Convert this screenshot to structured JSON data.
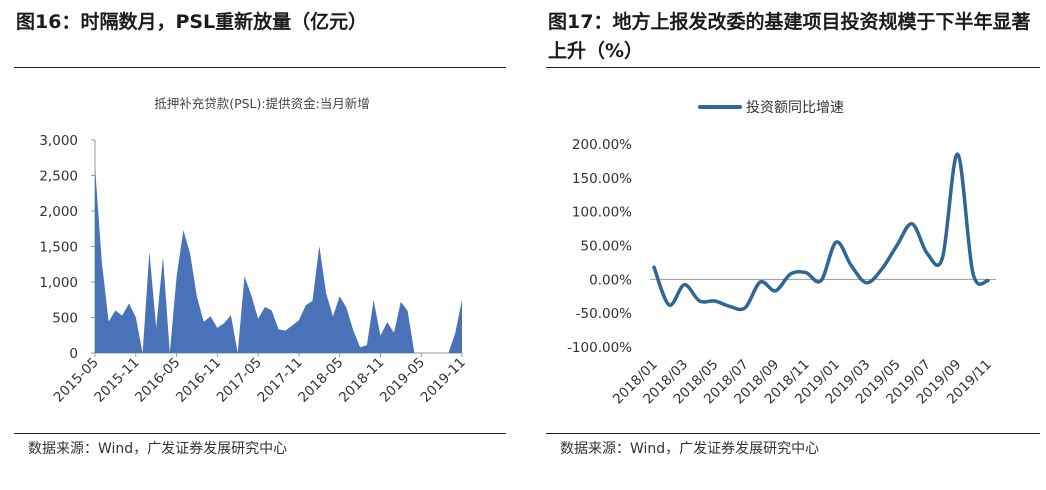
{
  "left": {
    "fig_title": "图16：时隔数月，PSL重新放量（亿元）",
    "source": "数据来源：Wind，广发证券发展研究中心",
    "chart_data": {
      "type": "area",
      "title": "抵押补充贷款(PSL):提供资金:当月新增",
      "color": "#4a72b8",
      "ylim": [
        0,
        3000
      ],
      "yticks": [
        0,
        500,
        1000,
        1500,
        2000,
        2500,
        3000
      ],
      "ytick_labels": [
        "0",
        "500",
        "1,000",
        "1,500",
        "2,000",
        "2,500",
        "3,000"
      ],
      "xtick_labels": [
        "2015-05",
        "2015-11",
        "2016-05",
        "2016-11",
        "2017-05",
        "2017-11",
        "2018-05",
        "2018-11",
        "2019-05",
        "2019-11"
      ],
      "x": [
        "2015-05",
        "2015-06",
        "2015-07",
        "2015-08",
        "2015-09",
        "2015-10",
        "2015-11",
        "2015-12",
        "2016-01",
        "2016-02",
        "2016-03",
        "2016-04",
        "2016-05",
        "2016-06",
        "2016-07",
        "2016-08",
        "2016-09",
        "2016-10",
        "2016-11",
        "2016-12",
        "2017-01",
        "2017-02",
        "2017-03",
        "2017-04",
        "2017-05",
        "2017-06",
        "2017-07",
        "2017-08",
        "2017-09",
        "2017-10",
        "2017-11",
        "2017-12",
        "2018-01",
        "2018-02",
        "2018-03",
        "2018-04",
        "2018-05",
        "2018-06",
        "2018-07",
        "2018-08",
        "2018-09",
        "2018-10",
        "2018-11",
        "2018-12",
        "2019-01",
        "2019-02",
        "2019-03",
        "2019-04",
        "2019-05",
        "2019-06",
        "2019-07",
        "2019-08",
        "2019-09",
        "2019-10",
        "2019-11"
      ],
      "values": [
        2626,
        1284,
        443,
        599,
        527,
        698,
        503,
        0,
        1426,
        355,
        1350,
        0,
        1077,
        1728,
        1401,
        791,
        439,
        516,
        353,
        420,
        534,
        0,
        1082,
        813,
        483,
        648,
        600,
        335,
        315,
        386,
        462,
        670,
        734,
        1509,
        844,
        515,
        799,
        635,
        317,
        81,
        108,
        745,
        242,
        436,
        284,
        722,
        593,
        0,
        0,
        0,
        0,
        0,
        0,
        276,
        751
      ]
    }
  },
  "right": {
    "fig_title": "图17：地方上报发改委的基建项目投资规模于下半年显著上升（%）",
    "source": "数据来源：Wind，广发证券发展研究中心",
    "chart_data": {
      "type": "line",
      "color": "#2f6694",
      "legend": "投资额同比增速",
      "legend_position": "top",
      "ylim": [
        -100,
        200
      ],
      "yticks": [
        -100,
        -50,
        0,
        50,
        100,
        150,
        200
      ],
      "ytick_labels": [
        "-100.00%",
        "-50.00%",
        "0.00%",
        "50.00%",
        "100.00%",
        "150.00%",
        "200.00%"
      ],
      "xtick_labels": [
        "2018/01",
        "2018/03",
        "2018/05",
        "2018/07",
        "2018/09",
        "2018/11",
        "2019/01",
        "2019/03",
        "2019/05",
        "2019/07",
        "2019/09",
        "2019/11"
      ],
      "x": [
        "2018/01",
        "2018/02",
        "2018/03",
        "2018/04",
        "2018/05",
        "2018/06",
        "2018/07",
        "2018/08",
        "2018/09",
        "2018/10",
        "2018/11",
        "2018/12",
        "2019/01",
        "2019/02",
        "2019/03",
        "2019/04",
        "2019/05",
        "2019/06",
        "2019/07",
        "2019/08",
        "2019/09",
        "2019/10",
        "2019/11"
      ],
      "values": [
        18,
        -38,
        -8,
        -32,
        -32,
        -40,
        -42,
        -4,
        -17,
        8,
        10,
        -2,
        55,
        20,
        -5,
        15,
        50,
        82,
        38,
        32,
        185,
        10,
        -2
      ]
    }
  }
}
